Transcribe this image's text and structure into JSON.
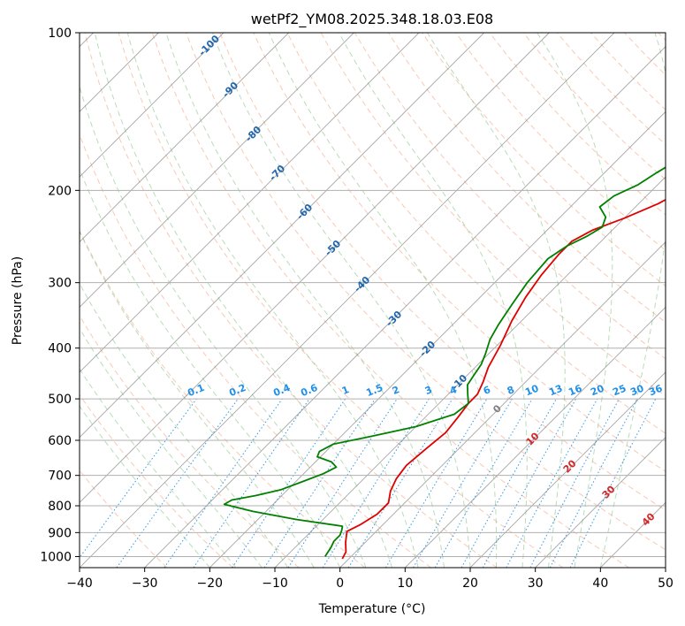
{
  "chart_data": {
    "type": "line",
    "title": "wetPf2_YM08.2025.348.18.03.E08",
    "xlabel": "Temperature (°C)",
    "ylabel": "Pressure (hPa)",
    "xlim": [
      -40,
      50
    ],
    "ylim": [
      1050,
      100
    ],
    "y_scale": "log",
    "grid": true,
    "x_ticks": [
      -40,
      -30,
      -20,
      -10,
      0,
      10,
      20,
      30,
      40,
      50
    ],
    "x_tick_labels": [
      "−40",
      "−30",
      "−20",
      "−10",
      "0",
      "10",
      "20",
      "30",
      "40",
      "50"
    ],
    "y_ticks": [
      100,
      200,
      300,
      400,
      500,
      600,
      700,
      800,
      900,
      1000
    ],
    "y_tick_labels": [
      "100",
      "200",
      "300",
      "400",
      "500",
      "600",
      "700",
      "800",
      "900",
      "1000"
    ],
    "series": [
      {
        "color": "#e00000",
        "points": [
          [
            -1.0,
            1010
          ],
          [
            -1.5,
            980
          ],
          [
            -3.0,
            940
          ],
          [
            -4.0,
            910
          ],
          [
            -4.5,
            895
          ],
          [
            -3.5,
            870
          ],
          [
            -2.5,
            830
          ],
          [
            -2.5,
            790
          ],
          [
            -4.0,
            750
          ],
          [
            -5.0,
            710
          ],
          [
            -5.5,
            670
          ],
          [
            -5.0,
            620
          ],
          [
            -4.5,
            580
          ],
          [
            -5.0,
            540
          ],
          [
            -5.5,
            510
          ],
          [
            -5.5,
            490
          ],
          [
            -6.5,
            465
          ],
          [
            -8.0,
            435
          ],
          [
            -9.5,
            395
          ],
          [
            -11.5,
            355
          ],
          [
            -13.0,
            320
          ],
          [
            -14.0,
            290
          ],
          [
            -14.5,
            265
          ],
          [
            -14.5,
            250
          ],
          [
            -13.0,
            238
          ],
          [
            -10.0,
            226
          ],
          [
            -7.0,
            212
          ],
          [
            -5.0,
            198
          ],
          [
            -2.0,
            184
          ],
          [
            1.5,
            170
          ],
          [
            4.5,
            155
          ],
          [
            8.5,
            140
          ],
          [
            11.5,
            125
          ],
          [
            14.5,
            113
          ],
          [
            17.0,
            103
          ],
          [
            18.5,
            98
          ]
        ]
      },
      {
        "color": "#008000",
        "points": [
          [
            -4.0,
            1000
          ],
          [
            -4.5,
            960
          ],
          [
            -5.0,
            935
          ],
          [
            -5.0,
            910
          ],
          [
            -5.5,
            890
          ],
          [
            -6.0,
            875
          ],
          [
            -14.0,
            850
          ],
          [
            -22.0,
            820
          ],
          [
            -27.5,
            795
          ],
          [
            -27.0,
            780
          ],
          [
            -24.0,
            765
          ],
          [
            -21.0,
            745
          ],
          [
            -19.0,
            720
          ],
          [
            -17.0,
            695
          ],
          [
            -16.0,
            675
          ],
          [
            -17.5,
            660
          ],
          [
            -20.5,
            645
          ],
          [
            -21.0,
            630
          ],
          [
            -20.0,
            610
          ],
          [
            -15.5,
            590
          ],
          [
            -10.0,
            565
          ],
          [
            -6.0,
            535
          ],
          [
            -5.5,
            510
          ],
          [
            -7.0,
            490
          ],
          [
            -8.5,
            470
          ],
          [
            -9.0,
            450
          ],
          [
            -9.5,
            430
          ],
          [
            -10.5,
            410
          ],
          [
            -12.0,
            385
          ],
          [
            -13.0,
            360
          ],
          [
            -14.0,
            330
          ],
          [
            -15.0,
            300
          ],
          [
            -15.5,
            270
          ],
          [
            -14.5,
            255
          ],
          [
            -13.0,
            245
          ],
          [
            -12.0,
            235
          ],
          [
            -13.0,
            225
          ],
          [
            -15.5,
            215
          ],
          [
            -15.0,
            205
          ],
          [
            -13.0,
            195
          ],
          [
            -12.0,
            185
          ],
          [
            -10.0,
            170
          ],
          [
            -7.5,
            155
          ],
          [
            -4.0,
            140
          ],
          [
            -0.5,
            125
          ],
          [
            3.0,
            113
          ],
          [
            6.0,
            103
          ],
          [
            7.0,
            100
          ]
        ]
      }
    ],
    "dry_adiabat_labels": [
      "-100",
      "-90",
      "-80",
      "-70",
      "-60",
      "-50",
      "-40",
      "-30",
      "-20",
      "-10"
    ],
    "moist_adiabat_labels": [
      "0",
      "10",
      "20",
      "30",
      "40"
    ],
    "mixing_ratio_labels": [
      "0.1",
      "0.2",
      "0.4",
      "0.6",
      "1",
      "1.5",
      "2",
      "3",
      "4",
      "6",
      "8",
      "10",
      "13",
      "16",
      "20",
      "25",
      "30",
      "36"
    ],
    "colors": {
      "temperature": "#e00000",
      "dewpoint": "#008000",
      "dry_adiabat": "#f4a582",
      "moist_adiabat": "#7fbf7f",
      "isotherm": "#808080",
      "mixing_ratio": "#1f8fe8",
      "dry_adiabat_label": "#2166ac",
      "moist_adiabat_label": "#d62728"
    }
  }
}
